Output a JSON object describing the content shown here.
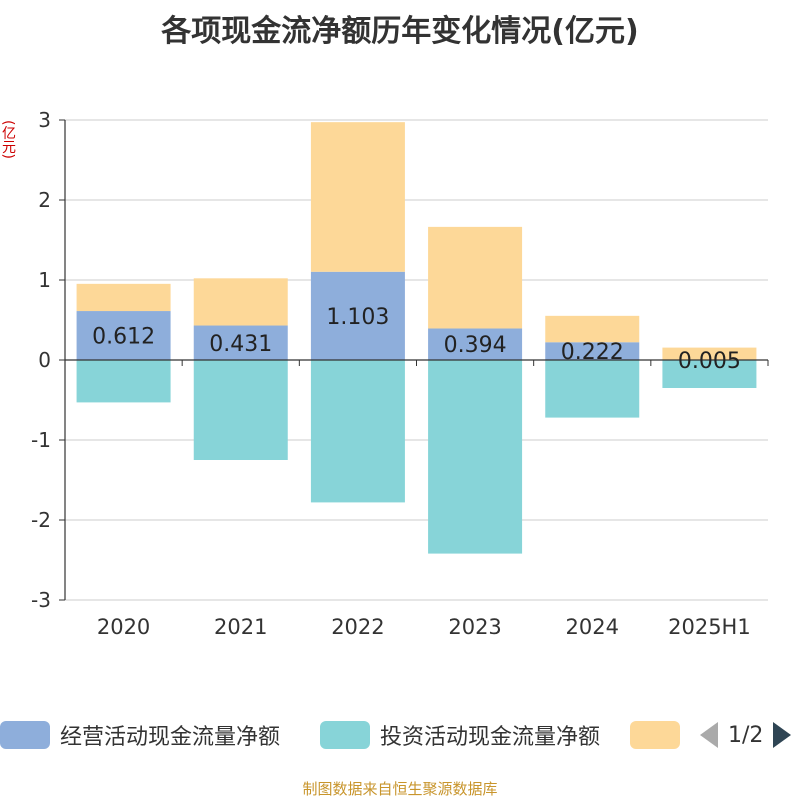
{
  "chart_data": {
    "type": "bar",
    "stacked": true,
    "title": "各项现金流净额历年变化情况(亿元)",
    "ylabel": "(亿元)",
    "ylim": [
      -3,
      3
    ],
    "yticks": [
      3,
      2,
      1,
      0,
      -1,
      -2,
      -3
    ],
    "grid": true,
    "categories": [
      "2020",
      "2021",
      "2022",
      "2023",
      "2024",
      "2025H1"
    ],
    "series": [
      {
        "name": "经营活动现金流量净额",
        "color": "#8eaedb",
        "values": [
          0.612,
          0.431,
          1.103,
          0.394,
          0.222,
          0.005
        ],
        "labels": [
          "0.612",
          "0.431",
          "1.103",
          "0.394",
          "0.222",
          "0.005"
        ]
      },
      {
        "name": "投资活动现金流量净额",
        "color": "#87d4d8",
        "values": [
          -0.53,
          -1.25,
          -1.78,
          -2.42,
          -0.72,
          -0.35
        ]
      },
      {
        "name": "",
        "color": "#fdd898",
        "values": [
          0.34,
          0.59,
          1.87,
          1.27,
          0.33,
          0.15
        ]
      }
    ]
  },
  "legend": {
    "items": [
      {
        "label": "经营活动现金流量净额",
        "color": "#8eaedb"
      },
      {
        "label": "投资活动现金流量净额",
        "color": "#87d4d8"
      },
      {
        "label": "",
        "color": "#fdd898"
      }
    ],
    "page": "1/2"
  },
  "source": "制图数据来自恒生聚源数据库"
}
